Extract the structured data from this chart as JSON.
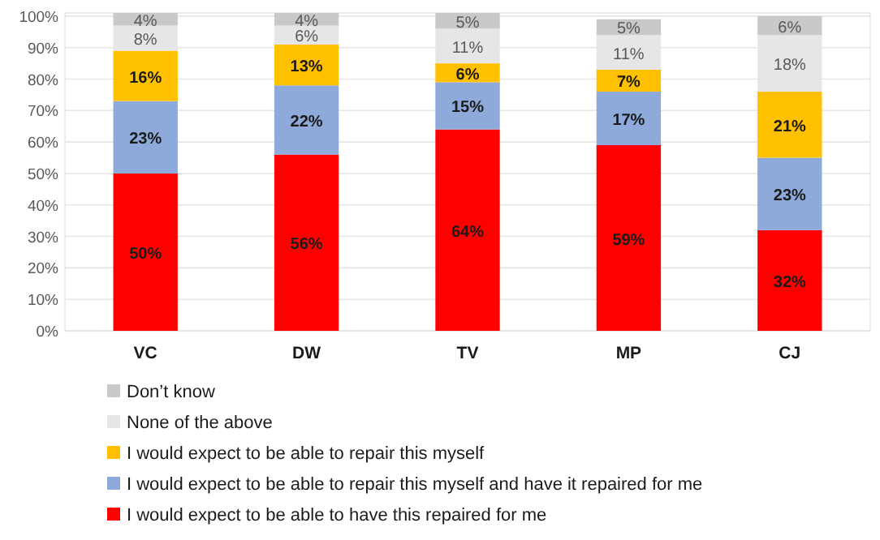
{
  "chart_data": {
    "type": "bar",
    "stacked": true,
    "categories": [
      "VC",
      "DW",
      "TV",
      "MP",
      "CJ"
    ],
    "series": [
      {
        "name": "I would expect to be able to have this repaired for me",
        "color": "#ff0000",
        "values": [
          50,
          56,
          64,
          59,
          32
        ],
        "value_labels": [
          "50%",
          "56%",
          "64%",
          "59%",
          "32%"
        ]
      },
      {
        "name": "I would expect to be able to repair this myself and have it repaired for me",
        "color": "#8eaadb",
        "values": [
          23,
          22,
          15,
          17,
          23
        ],
        "value_labels": [
          "23%",
          "22%",
          "15%",
          "17%",
          "23%"
        ]
      },
      {
        "name": "I would expect to be able to repair this myself",
        "color": "#ffc000",
        "values": [
          16,
          13,
          6,
          7,
          21
        ],
        "value_labels": [
          "16%",
          "13%",
          "6%",
          "7%",
          "21%"
        ]
      },
      {
        "name": "None of the above",
        "color": "#e7e6e6",
        "values": [
          8,
          6,
          11,
          11,
          18
        ],
        "value_labels": [
          "8%",
          "6%",
          "11%",
          "11%",
          "18%"
        ]
      },
      {
        "name": "Don’t know",
        "color": "#c9c9c9",
        "values": [
          4,
          4,
          5,
          5,
          6
        ],
        "value_labels": [
          "4%",
          "4%",
          "5%",
          "5%",
          "6%"
        ]
      }
    ],
    "ylim": [
      0,
      101
    ],
    "yticks": [
      {
        "value": 0,
        "label": "0%"
      },
      {
        "value": 10,
        "label": "10%"
      },
      {
        "value": 20,
        "label": "20%"
      },
      {
        "value": 30,
        "label": "30%"
      },
      {
        "value": 40,
        "label": "40%"
      },
      {
        "value": 50,
        "label": "50%"
      },
      {
        "value": 60,
        "label": "60%"
      },
      {
        "value": 70,
        "label": "70%"
      },
      {
        "value": 80,
        "label": "80%"
      },
      {
        "value": 90,
        "label": "90%"
      },
      {
        "value": 100,
        "label": "100%"
      }
    ],
    "grid": "y",
    "legend": "bottom"
  }
}
